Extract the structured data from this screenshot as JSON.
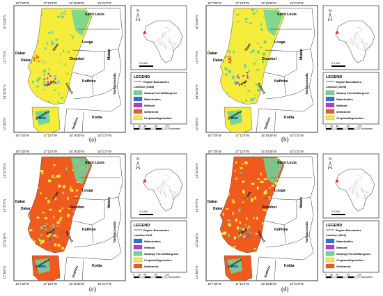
{
  "panels": [
    {
      "id": "a",
      "caption": "(a)",
      "legend_title": "LEGEND",
      "boundary_label": "Region Boundaries",
      "landuse_title": "Landuse (1988)",
      "entries": [
        {
          "label": "Swamp Forest/Mangrove",
          "color": "#6ed39a"
        },
        {
          "label": "Waterbodies",
          "color": "#2f6fd6"
        },
        {
          "label": "Wetland",
          "color": "#b53ad0"
        },
        {
          "label": "Settlement",
          "color": "#f05a1e"
        },
        {
          "label": "Cropland/Agriculture",
          "color": "#f6ec3c"
        }
      ]
    },
    {
      "id": "b",
      "caption": "(b)",
      "legend_title": "LEGEND",
      "boundary_label": "Region Boundaries",
      "landuse_title": "Landuse (2008)",
      "entries": [
        {
          "label": "Swamp Forest/Mangrove",
          "color": "#6ed39a"
        },
        {
          "label": "Waterbodies",
          "color": "#2f6fd6"
        },
        {
          "label": "Wetland",
          "color": "#b53ad0"
        },
        {
          "label": "Settlement",
          "color": "#f05a1e"
        },
        {
          "label": "Cropland/Agriculture",
          "color": "#f6ec3c"
        }
      ]
    },
    {
      "id": "c",
      "caption": "(c)",
      "legend_title": "LEGEND",
      "boundary_label": "Region Boundaries",
      "landuse_title": "Landuse 2018",
      "entries": [
        {
          "label": "Waterbodies",
          "color": "#2f6fd6"
        },
        {
          "label": "Wetland",
          "color": "#b53ad0"
        },
        {
          "label": "Swampy Forest/Mangrove",
          "color": "#6ed39a"
        },
        {
          "label": "Cropland/Agriculture",
          "color": "#f6ec3c"
        },
        {
          "label": "Settlement",
          "color": "#f05a1e"
        }
      ]
    },
    {
      "id": "d",
      "caption": "(d)",
      "legend_title": "LEGEND",
      "boundary_label": "Region Boundaries",
      "landuse_title": "Landuse (2022)",
      "entries": [
        {
          "label": "Waterbodies",
          "color": "#2f6fd6"
        },
        {
          "label": "Wetland",
          "color": "#b53ad0"
        },
        {
          "label": "Swampy Forest/Mangrove",
          "color": "#6ed39a"
        },
        {
          "label": "Cropland/Agriculture",
          "color": "#f6ec3c"
        },
        {
          "label": "Settlement",
          "color": "#f05a1e"
        }
      ]
    }
  ],
  "lon_ticks": [
    "18°7'30\"W",
    "17°12'0\"W",
    "16°16'30\"W",
    "15°21'0\"W",
    "14°25'30\"W"
  ],
  "lat_ticks": [
    "15°22'30\"N",
    "14°27'0\"N",
    "13°31'30\"N",
    "12°36'0\"N"
  ],
  "region_labels": {
    "saint_louis": "Saint Louis",
    "louga": "Louga",
    "diourbel": "Diourbel",
    "dakar": "Dakar",
    "thies": "Thies",
    "fatick": "Fatick",
    "kaolack": "Kaolack",
    "kaffrine": "Kaffrine",
    "matam": "Matam",
    "tambacounda": "Tambacounda",
    "kolda": "Kolda",
    "sedhiou": "Sedhiou",
    "ziguinchor": "Ziguinchor"
  },
  "north_label": "N",
  "scale": {
    "labels": [
      "0",
      "20",
      "40",
      "80",
      "120"
    ],
    "unit": "Kilometers"
  },
  "inset_scale": {
    "labels": [
      "0",
      "3,400"
    ],
    "unit": "Kilometers"
  },
  "colors": {
    "settlement": "#f05a1e",
    "cropland": "#f6ec3c",
    "mangrove": "#6ed39a",
    "water": "#2f6fd6",
    "wetland": "#b53ad0",
    "highlight": "#e23b2a"
  }
}
